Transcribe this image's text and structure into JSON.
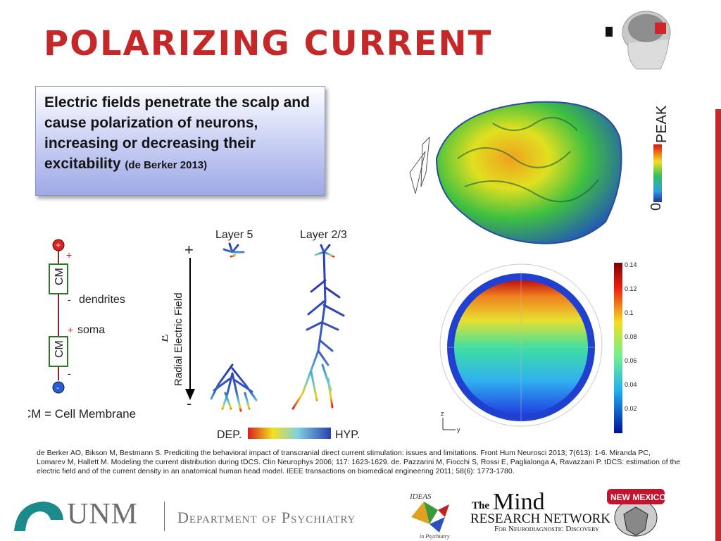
{
  "slide": {
    "title": "POLARIZING CURRENT",
    "callout_text": "Electric fields penetrate the scalp and cause polarization of neurons, increasing or decreasing their excitability",
    "callout_citation": "(de Berker 2013)"
  },
  "circuit": {
    "cm_top": "CM",
    "cm_bottom": "CM",
    "dendrites_label": "dendrites",
    "soma_label": "soma",
    "plus_top": "+",
    "minus_bottom": "-",
    "minus_label": "-",
    "plus_label": "+",
    "minus_low": "-",
    "legend": "CM = Cell Membrane"
  },
  "neurons": {
    "layer5_label": "Layer 5",
    "layer23_label": "Layer 2/3",
    "axis_label": "Radial Electric Field",
    "axis_symbol": "E",
    "axis_sub": "x",
    "axis_plus": "+",
    "axis_minus": "-",
    "scale_left": "DEP.",
    "scale_right": "HYP."
  },
  "brain_scale": {
    "top_label": "PEAK",
    "bottom_label": "0"
  },
  "head_model": {
    "colorbar_ticks": [
      "0.14",
      "0.12",
      "0.1",
      "0.08",
      "0.06",
      "0.04",
      "0.02"
    ],
    "axis_z": "z",
    "axis_y": "y"
  },
  "references": {
    "text": "de Berker AO, Bikson M, Bestmann S. Prediciting the behavioral impact of transcranial direct current stimulation: issues and limitations. Front Hum Neurosci 2013; 7(613): 1-6. Miranda PC, Lomarev M, Hallett M. Modeling the current distribution during tDCS. Clin Neurophys 2006; 117: 1623-1629. de. Pazzarini M, Fiocchi S, Rossi E, Paglialonga A, Ravazzani P. tDCS: estimation of the electric field and of the current density in an anatomical human head model. IEEE transactions on biomedical engineering 2011; 58(6): 1773-1780."
  },
  "footer": {
    "unm": "UNM",
    "department": "Department of Psychiatry",
    "ideas_top": "IDEAS",
    "ideas_bottom": "in Psychiatry",
    "mind_the": "The",
    "mind_word": "Mind",
    "mind_research": "RESEARCH NETWORK",
    "mind_tagline": "For Neurodiagnostic Discovery",
    "lobo_text": "NEW MEXICO"
  },
  "colors": {
    "accent": "#c42828",
    "callout_bg": "#b9c2f0",
    "unm_teal": "#1a8a8a",
    "unm_gray": "#6d6e71"
  }
}
